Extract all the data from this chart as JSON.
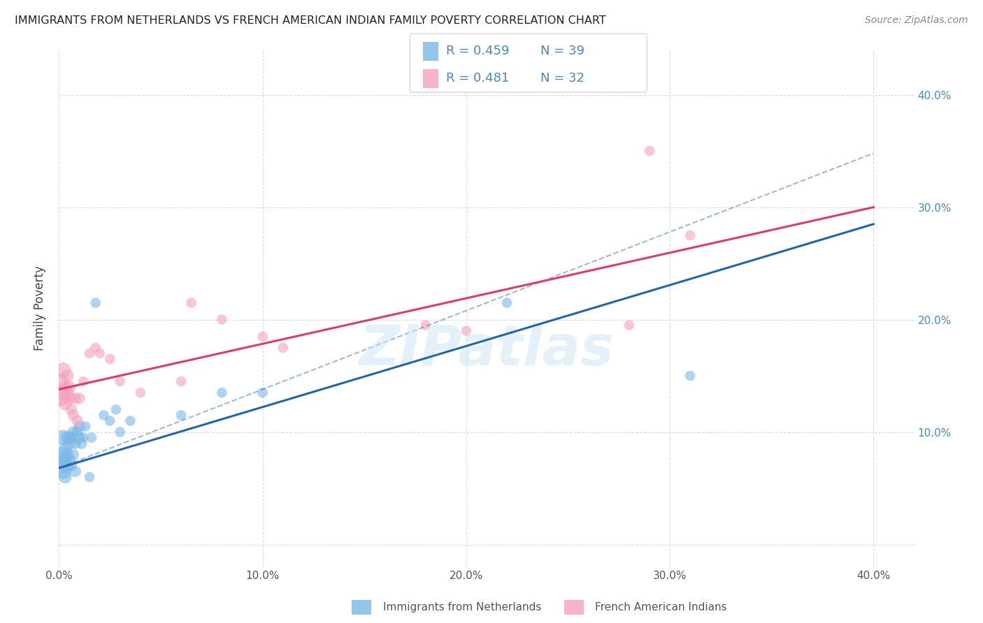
{
  "title": "IMMIGRANTS FROM NETHERLANDS VS FRENCH AMERICAN INDIAN FAMILY POVERTY CORRELATION CHART",
  "source": "Source: ZipAtlas.com",
  "ylabel": "Family Poverty",
  "y_ticks": [
    0.0,
    0.1,
    0.2,
    0.3,
    0.4
  ],
  "y_tick_labels": [
    "",
    "10.0%",
    "20.0%",
    "30.0%",
    "40.0%"
  ],
  "x_ticks": [
    0.0,
    0.1,
    0.2,
    0.3,
    0.4
  ],
  "x_tick_labels": [
    "0.0%",
    "10.0%",
    "20.0%",
    "30.0%",
    "40.0%"
  ],
  "xlim": [
    0.0,
    0.42
  ],
  "ylim": [
    -0.02,
    0.44
  ],
  "legend_entries": [
    {
      "label_r": "R = 0.459",
      "label_n": "N = 39",
      "color": "#a8c8f0"
    },
    {
      "label_r": "R = 0.481",
      "label_n": "N = 32",
      "color": "#f4b8cc"
    }
  ],
  "blue_scatter_x": [
    0.001,
    0.001,
    0.002,
    0.002,
    0.002,
    0.003,
    0.003,
    0.003,
    0.004,
    0.004,
    0.004,
    0.005,
    0.005,
    0.005,
    0.006,
    0.006,
    0.007,
    0.007,
    0.008,
    0.008,
    0.009,
    0.01,
    0.01,
    0.011,
    0.012,
    0.013,
    0.015,
    0.016,
    0.018,
    0.022,
    0.025,
    0.028,
    0.03,
    0.035,
    0.06,
    0.08,
    0.1,
    0.22,
    0.31
  ],
  "blue_scatter_y": [
    0.07,
    0.075,
    0.065,
    0.08,
    0.095,
    0.06,
    0.075,
    0.085,
    0.07,
    0.08,
    0.095,
    0.075,
    0.09,
    0.095,
    0.07,
    0.095,
    0.08,
    0.1,
    0.065,
    0.09,
    0.1,
    0.095,
    0.105,
    0.09,
    0.095,
    0.105,
    0.06,
    0.095,
    0.215,
    0.115,
    0.11,
    0.12,
    0.1,
    0.11,
    0.115,
    0.135,
    0.135,
    0.215,
    0.15
  ],
  "pink_scatter_x": [
    0.001,
    0.001,
    0.002,
    0.002,
    0.003,
    0.003,
    0.004,
    0.004,
    0.005,
    0.005,
    0.006,
    0.007,
    0.008,
    0.009,
    0.01,
    0.012,
    0.015,
    0.018,
    0.02,
    0.025,
    0.03,
    0.04,
    0.06,
    0.065,
    0.08,
    0.1,
    0.11,
    0.18,
    0.2,
    0.28,
    0.29,
    0.31
  ],
  "pink_scatter_y": [
    0.13,
    0.145,
    0.135,
    0.155,
    0.125,
    0.14,
    0.135,
    0.15,
    0.13,
    0.14,
    0.12,
    0.115,
    0.13,
    0.11,
    0.13,
    0.145,
    0.17,
    0.175,
    0.17,
    0.165,
    0.145,
    0.135,
    0.145,
    0.215,
    0.2,
    0.185,
    0.175,
    0.195,
    0.19,
    0.195,
    0.35,
    0.275
  ],
  "blue_line_x": [
    0.0,
    0.4
  ],
  "blue_line_y": [
    0.068,
    0.285
  ],
  "pink_line_x": [
    0.0,
    0.4
  ],
  "pink_line_y": [
    0.138,
    0.3
  ],
  "dash_line_x": [
    0.0,
    0.4
  ],
  "dash_line_y": [
    0.068,
    0.348
  ],
  "watermark": "ZIPatlas",
  "scatter_alpha": 0.6,
  "line_width": 2.2,
  "grid_color": "#cccccc",
  "bg_color": "#ffffff",
  "blue_color": "#7ab8e8",
  "pink_color": "#f4a0bc",
  "blue_line_color": "#2266aa",
  "pink_line_color": "#e03870",
  "right_axis_color": "#4488cc",
  "legend_text_color": "#4488cc"
}
